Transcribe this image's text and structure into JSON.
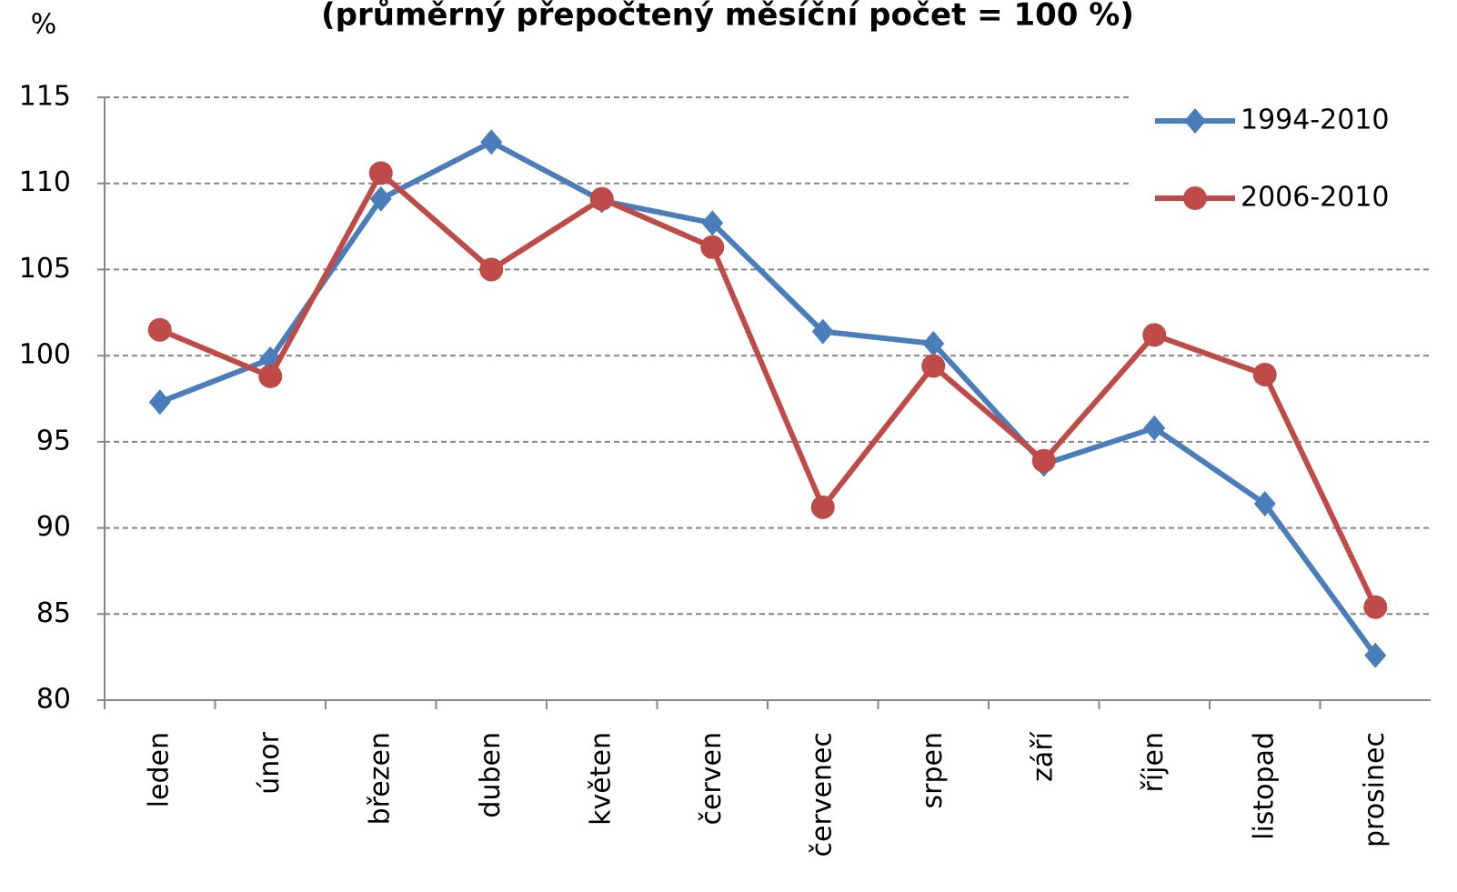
{
  "chart_data": {
    "type": "line",
    "title": "(průměrný přepočtený měsíční počet = 100 %)",
    "y_label": "%",
    "categories": [
      "leden",
      "únor",
      "březen",
      "duben",
      "květen",
      "červen",
      "červenec",
      "srpen",
      "září",
      "říjen",
      "listopad",
      "prosinec"
    ],
    "series": [
      {
        "name": "1994-2010",
        "color": "#4a7ebb",
        "marker": "diamond",
        "values": [
          97.3,
          99.8,
          109.1,
          112.4,
          109.0,
          107.7,
          101.4,
          100.7,
          93.7,
          95.8,
          91.4,
          82.6
        ]
      },
      {
        "name": "2006-2010",
        "color": "#be4b48",
        "marker": "circle",
        "values": [
          101.5,
          98.8,
          110.6,
          105.0,
          109.1,
          106.3,
          91.2,
          99.4,
          93.9,
          101.2,
          98.9,
          85.4
        ]
      }
    ],
    "ylim": [
      80,
      115
    ],
    "yticks": [
      80,
      85,
      90,
      95,
      100,
      105,
      110,
      115
    ],
    "grid": true,
    "legend": "top-right"
  }
}
